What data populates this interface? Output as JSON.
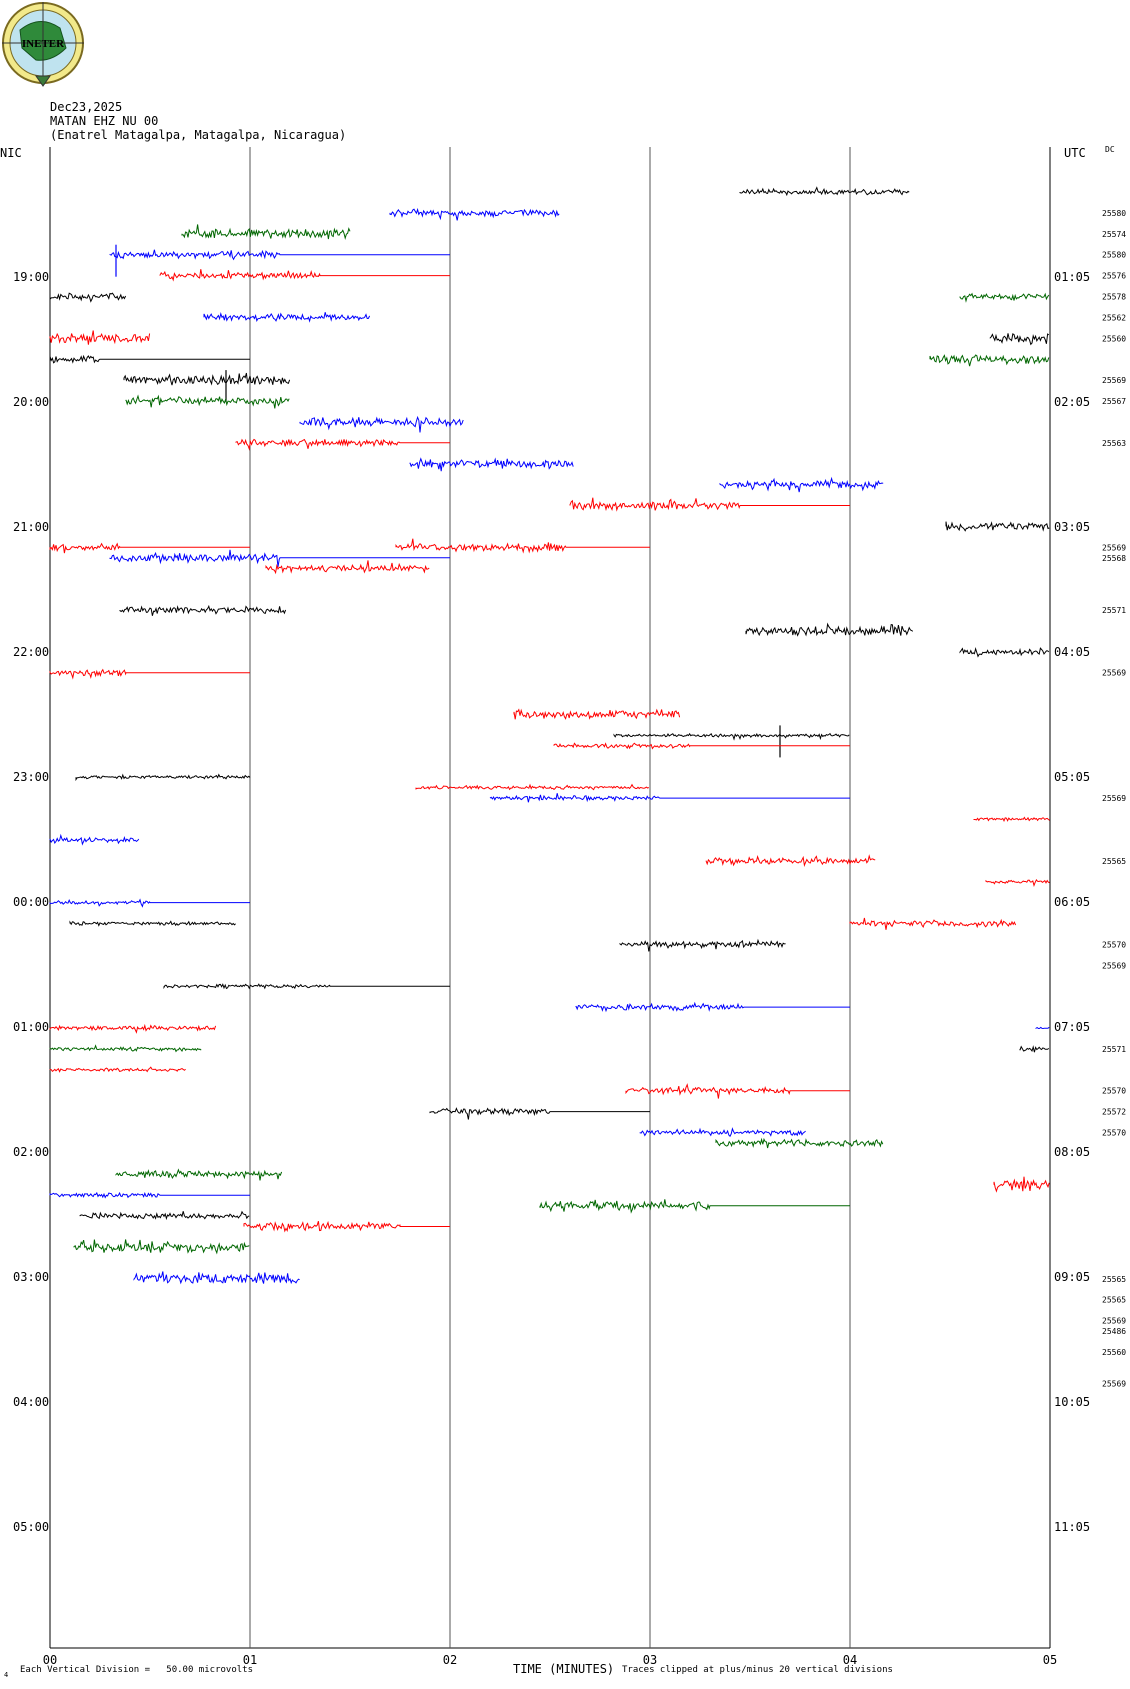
{
  "header": {
    "date": "Dec23,2025",
    "station": "MATAN EHZ NU 00",
    "location": "(Enatrel Matagalpa, Matagalpa, Nicaragua)",
    "logo_text": "INETER"
  },
  "colors": {
    "black": "#000000",
    "blue": "#0000ff",
    "red": "#ff0000",
    "green": "#006600",
    "grid": "#555555"
  },
  "chart_data": {
    "type": "line",
    "title": "MATAN EHZ NU 00",
    "xlabel": "TIME (MINUTES)",
    "left_axis_label": "NIC",
    "right_axis_label": "UTC",
    "dc_label": "DC",
    "xlim": [
      0,
      5
    ],
    "x_ticks": [
      "00",
      "01",
      "02",
      "03",
      "04",
      "05"
    ],
    "left_time_labels": [
      "19:00",
      "20:00",
      "21:00",
      "22:00",
      "23:00",
      "00:00",
      "01:00",
      "02:00",
      "03:00",
      "04:00",
      "05:00"
    ],
    "right_time_labels": [
      "01:05",
      "02:05",
      "03:05",
      "04:05",
      "05:05",
      "06:05",
      "07:05",
      "08:05",
      "09:05",
      "10:05",
      "11:05"
    ],
    "row_minutes_start": 18.0,
    "row_step_minutes": 5,
    "dc_values": [
      {
        "row": 1,
        "value": "25580"
      },
      {
        "row": 2,
        "value": "25574"
      },
      {
        "row": 3,
        "value": "25580"
      },
      {
        "row": 4,
        "value": "25576"
      },
      {
        "row": 5,
        "value": "25578"
      },
      {
        "row": 6,
        "value": "25562"
      },
      {
        "row": 7,
        "value": "25560"
      },
      {
        "row": 9,
        "value": "25569"
      },
      {
        "row": 10,
        "value": "25567"
      },
      {
        "row": 12,
        "value": "25563"
      },
      {
        "row": 17,
        "value": "25569"
      },
      {
        "row": 17.5,
        "value": "25568"
      },
      {
        "row": 20,
        "value": "25571"
      },
      {
        "row": 23,
        "value": "25569"
      },
      {
        "row": 29,
        "value": "25569"
      },
      {
        "row": 32,
        "value": "25565"
      },
      {
        "row": 36,
        "value": "25570"
      },
      {
        "row": 37,
        "value": "25569"
      },
      {
        "row": 41,
        "value": "25571"
      },
      {
        "row": 43,
        "value": "25570"
      },
      {
        "row": 44,
        "value": "25572"
      },
      {
        "row": 45,
        "value": "25570"
      },
      {
        "row": 52,
        "value": "25565"
      },
      {
        "row": 53,
        "value": "25565"
      },
      {
        "row": 54,
        "value": "25569"
      },
      {
        "row": 54.5,
        "value": "25486"
      },
      {
        "row": 55.5,
        "value": "25560"
      },
      {
        "row": 57,
        "value": "25569"
      }
    ],
    "series": [
      {
        "row": 0,
        "color": "black",
        "x_start": 3.45,
        "x_end": 4.3,
        "amp": 2.5
      },
      {
        "row": 1,
        "color": "blue",
        "x_start": 1.7,
        "x_end": 2.55,
        "amp": 3
      },
      {
        "row": 2,
        "color": "green",
        "x_start": 0.66,
        "x_end": 1.5,
        "amp": 4
      },
      {
        "row": 3,
        "color": "blue",
        "x_start": 0.3,
        "x_end": 2.0,
        "amp": 3,
        "quiet_from": 1.15,
        "spike_at": 0.33
      },
      {
        "row": 4,
        "color": "red",
        "x_start": 0.55,
        "x_end": 2.0,
        "amp": 3,
        "quiet_from": 1.35
      },
      {
        "row": 5,
        "color": "black",
        "x_start": 0.0,
        "x_end": 0.38,
        "amp": 3
      },
      {
        "row": 5,
        "color": "green",
        "x_start": 4.55,
        "x_end": 5.0,
        "amp": 2.5
      },
      {
        "row": 6,
        "color": "blue",
        "x_start": 0.77,
        "x_end": 1.6,
        "amp": 3
      },
      {
        "row": 7,
        "color": "red",
        "x_start": 0.0,
        "x_end": 0.5,
        "amp": 4
      },
      {
        "row": 7,
        "color": "black",
        "x_start": 4.7,
        "x_end": 5.0,
        "amp": 5
      },
      {
        "row": 8,
        "color": "black",
        "x_start": 0.0,
        "x_end": 1.0,
        "amp": 3,
        "quiet_from": 0.25
      },
      {
        "row": 8,
        "color": "green",
        "x_start": 4.4,
        "x_end": 5.0,
        "amp": 4
      },
      {
        "row": 9,
        "color": "black",
        "x_start": 0.37,
        "x_end": 1.2,
        "amp": 4,
        "spike_at": 0.88
      },
      {
        "row": 10,
        "color": "green",
        "x_start": 0.38,
        "x_end": 1.2,
        "amp": 4
      },
      {
        "row": 11,
        "color": "blue",
        "x_start": 1.25,
        "x_end": 2.07,
        "amp": 4
      },
      {
        "row": 12,
        "color": "red",
        "x_start": 0.93,
        "x_end": 2.0,
        "amp": 3,
        "quiet_from": 1.75
      },
      {
        "row": 13,
        "color": "blue",
        "x_start": 1.8,
        "x_end": 2.62,
        "amp": 4
      },
      {
        "row": 14,
        "color": "blue",
        "x_start": 3.35,
        "x_end": 4.17,
        "amp": 3
      },
      {
        "row": 15,
        "color": "red",
        "x_start": 2.6,
        "x_end": 4.0,
        "amp": 4,
        "quiet_from": 3.45
      },
      {
        "row": 16,
        "color": "black",
        "x_start": 4.48,
        "x_end": 5.0,
        "amp": 4
      },
      {
        "row": 17,
        "color": "red",
        "x_start": 0.0,
        "x_end": 1.0,
        "amp": 3,
        "quiet_from": 0.35
      },
      {
        "row": 17,
        "color": "red",
        "x_start": 1.73,
        "x_end": 3.0,
        "amp": 4,
        "quiet_from": 2.58
      },
      {
        "row": 17.5,
        "color": "blue",
        "x_start": 0.3,
        "x_end": 2.0,
        "amp": 4,
        "quiet_from": 1.15
      },
      {
        "row": 18,
        "color": "red",
        "x_start": 1.08,
        "x_end": 1.9,
        "amp": 3
      },
      {
        "row": 20,
        "color": "black",
        "x_start": 0.35,
        "x_end": 1.18,
        "amp": 3
      },
      {
        "row": 21,
        "color": "black",
        "x_start": 3.48,
        "x_end": 4.32,
        "amp": 4
      },
      {
        "row": 22,
        "color": "black",
        "x_start": 4.55,
        "x_end": 5.0,
        "amp": 3
      },
      {
        "row": 23,
        "color": "red",
        "x_start": 0.0,
        "x_end": 1.0,
        "amp": 3,
        "quiet_from": 0.38
      },
      {
        "row": 25,
        "color": "red",
        "x_start": 2.32,
        "x_end": 3.15,
        "amp": 4
      },
      {
        "row": 26,
        "color": "black",
        "x_start": 2.82,
        "x_end": 4.0,
        "amp": 1.5,
        "spike_at": 3.65
      },
      {
        "row": 26.5,
        "color": "red",
        "x_start": 2.52,
        "x_end": 4.0,
        "amp": 2,
        "quiet_from": 3.2
      },
      {
        "row": 28,
        "color": "black",
        "x_start": 0.13,
        "x_end": 1.0,
        "amp": 1.5
      },
      {
        "row": 28.5,
        "color": "red",
        "x_start": 1.83,
        "x_end": 3.0,
        "amp": 1.5
      },
      {
        "row": 29,
        "color": "blue",
        "x_start": 2.2,
        "x_end": 4.0,
        "amp": 2,
        "quiet_from": 3.05
      },
      {
        "row": 30,
        "color": "red",
        "x_start": 4.62,
        "x_end": 5.0,
        "amp": 1.5
      },
      {
        "row": 31,
        "color": "blue",
        "x_start": 0.0,
        "x_end": 0.45,
        "amp": 2
      },
      {
        "row": 32,
        "color": "red",
        "x_start": 3.28,
        "x_end": 4.13,
        "amp": 3
      },
      {
        "row": 33,
        "color": "red",
        "x_start": 4.68,
        "x_end": 5.0,
        "amp": 1.5
      },
      {
        "row": 34,
        "color": "blue",
        "x_start": 0.0,
        "x_end": 1.0,
        "amp": 1.5,
        "quiet_from": 0.5
      },
      {
        "row": 35,
        "color": "black",
        "x_start": 0.1,
        "x_end": 0.93,
        "amp": 1.5
      },
      {
        "row": 35,
        "color": "red",
        "x_start": 4.0,
        "x_end": 4.83,
        "amp": 3
      },
      {
        "row": 36,
        "color": "black",
        "x_start": 2.85,
        "x_end": 3.68,
        "amp": 3
      },
      {
        "row": 38,
        "color": "black",
        "x_start": 0.57,
        "x_end": 2.0,
        "amp": 1.5,
        "quiet_from": 1.4
      },
      {
        "row": 39,
        "color": "blue",
        "x_start": 2.63,
        "x_end": 4.0,
        "amp": 3,
        "quiet_from": 3.47
      },
      {
        "row": 40,
        "color": "red",
        "x_start": 0.0,
        "x_end": 0.83,
        "amp": 2
      },
      {
        "row": 40,
        "color": "blue",
        "x_start": 4.93,
        "x_end": 5.0,
        "amp": 1
      },
      {
        "row": 41,
        "color": "green",
        "x_start": 0.0,
        "x_end": 0.76,
        "amp": 1.5
      },
      {
        "row": 41,
        "color": "black",
        "x_start": 4.85,
        "x_end": 5.0,
        "amp": 2
      },
      {
        "row": 42,
        "color": "red",
        "x_start": 0.0,
        "x_end": 0.68,
        "amp": 1.5
      },
      {
        "row": 43,
        "color": "red",
        "x_start": 2.88,
        "x_end": 4.0,
        "amp": 3,
        "quiet_from": 3.7
      },
      {
        "row": 44,
        "color": "black",
        "x_start": 1.9,
        "x_end": 3.0,
        "amp": 3,
        "quiet_from": 2.5
      },
      {
        "row": 45,
        "color": "blue",
        "x_start": 2.95,
        "x_end": 3.78,
        "amp": 2.5
      },
      {
        "row": 45.5,
        "color": "green",
        "x_start": 3.33,
        "x_end": 4.17,
        "amp": 3
      },
      {
        "row": 47,
        "color": "green",
        "x_start": 0.33,
        "x_end": 1.16,
        "amp": 3
      },
      {
        "row": 47.5,
        "color": "red",
        "x_start": 4.72,
        "x_end": 5.0,
        "amp": 5
      },
      {
        "row": 48,
        "color": "blue",
        "x_start": 0.0,
        "x_end": 1.0,
        "amp": 2,
        "quiet_from": 0.55
      },
      {
        "row": 48.5,
        "color": "green",
        "x_start": 2.45,
        "x_end": 4.0,
        "amp": 4,
        "quiet_from": 3.3
      },
      {
        "row": 49,
        "color": "black",
        "x_start": 0.15,
        "x_end": 1.0,
        "amp": 2.5
      },
      {
        "row": 49.5,
        "color": "red",
        "x_start": 0.97,
        "x_end": 2.0,
        "amp": 4,
        "quiet_from": 1.75
      },
      {
        "row": 50.5,
        "color": "green",
        "x_start": 0.12,
        "x_end": 1.0,
        "amp": 5
      },
      {
        "row": 52,
        "color": "blue",
        "x_start": 0.42,
        "x_end": 1.25,
        "amp": 5
      }
    ]
  },
  "footer": {
    "vertical_division": "Each Vertical Division =   50.00 microvolts",
    "axis_title": "TIME (MINUTES)",
    "clip_note": "Traces clipped at plus/minus 20 vertical divisions",
    "corner_mark": "4"
  }
}
